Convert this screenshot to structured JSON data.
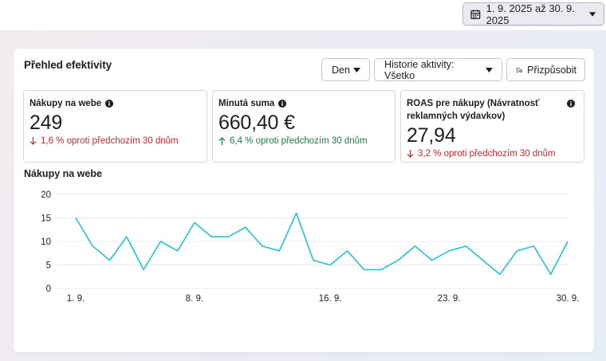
{
  "header": {
    "date_range_label": "1. 9. 2025 až 30. 9. 2025"
  },
  "panel": {
    "title": "Přehled efektivity",
    "controls": {
      "granularity": "Den",
      "history": "Historie aktivity: Všetko",
      "customize": "Přizpůsobit"
    }
  },
  "metrics": [
    {
      "label": "Nákupy na webe",
      "value": "249",
      "delta": "1,6 % oproti předchozím 30 dnům",
      "trend": "down"
    },
    {
      "label": "Minutá suma",
      "value": "660,40 €",
      "delta": "6,4 % oproti předchozím 30 dnům",
      "trend": "up"
    },
    {
      "label": "ROAS pre nákupy (Návratnosť reklamných výdavkov)",
      "value": "27,94",
      "delta": "3,2 % oproti předchozím 30 dnům",
      "trend": "down"
    }
  ],
  "colors": {
    "line": "#26c1c9",
    "grid": "#e6e8eb",
    "down": "#c0262d",
    "up": "#1f7a48"
  },
  "icons": {
    "date": "calendar-icon",
    "dropdown": "chevron-down-icon",
    "customize": "sliders-gear-icon",
    "info": "info-icon",
    "down": "arrow-down-icon",
    "up": "arrow-up-icon"
  },
  "chart_data": {
    "type": "line",
    "title": "Nákupy na webe",
    "x_tick_labels": [
      "1. 9.",
      "8. 9.",
      "16. 9.",
      "23. 9.",
      "30. 9."
    ],
    "x_tick_days": [
      1,
      8,
      16,
      23,
      30
    ],
    "y_ticks": [
      0,
      5,
      10,
      15,
      20
    ],
    "ylim": [
      0,
      20
    ],
    "grid": true,
    "series": [
      {
        "x": [
          1,
          2,
          3,
          4,
          5,
          6,
          7,
          8,
          9,
          10,
          11,
          12,
          13,
          14,
          15,
          16,
          17,
          18,
          19,
          20,
          21,
          22,
          23,
          24,
          25,
          26,
          27,
          28,
          29,
          30
        ],
        "values": [
          15,
          9,
          6,
          11,
          4,
          10,
          8,
          14,
          11,
          11,
          13,
          9,
          8,
          16,
          6,
          5,
          8,
          4,
          4,
          6,
          9,
          6,
          8,
          9,
          6,
          3,
          8,
          9,
          3,
          10
        ]
      }
    ]
  }
}
